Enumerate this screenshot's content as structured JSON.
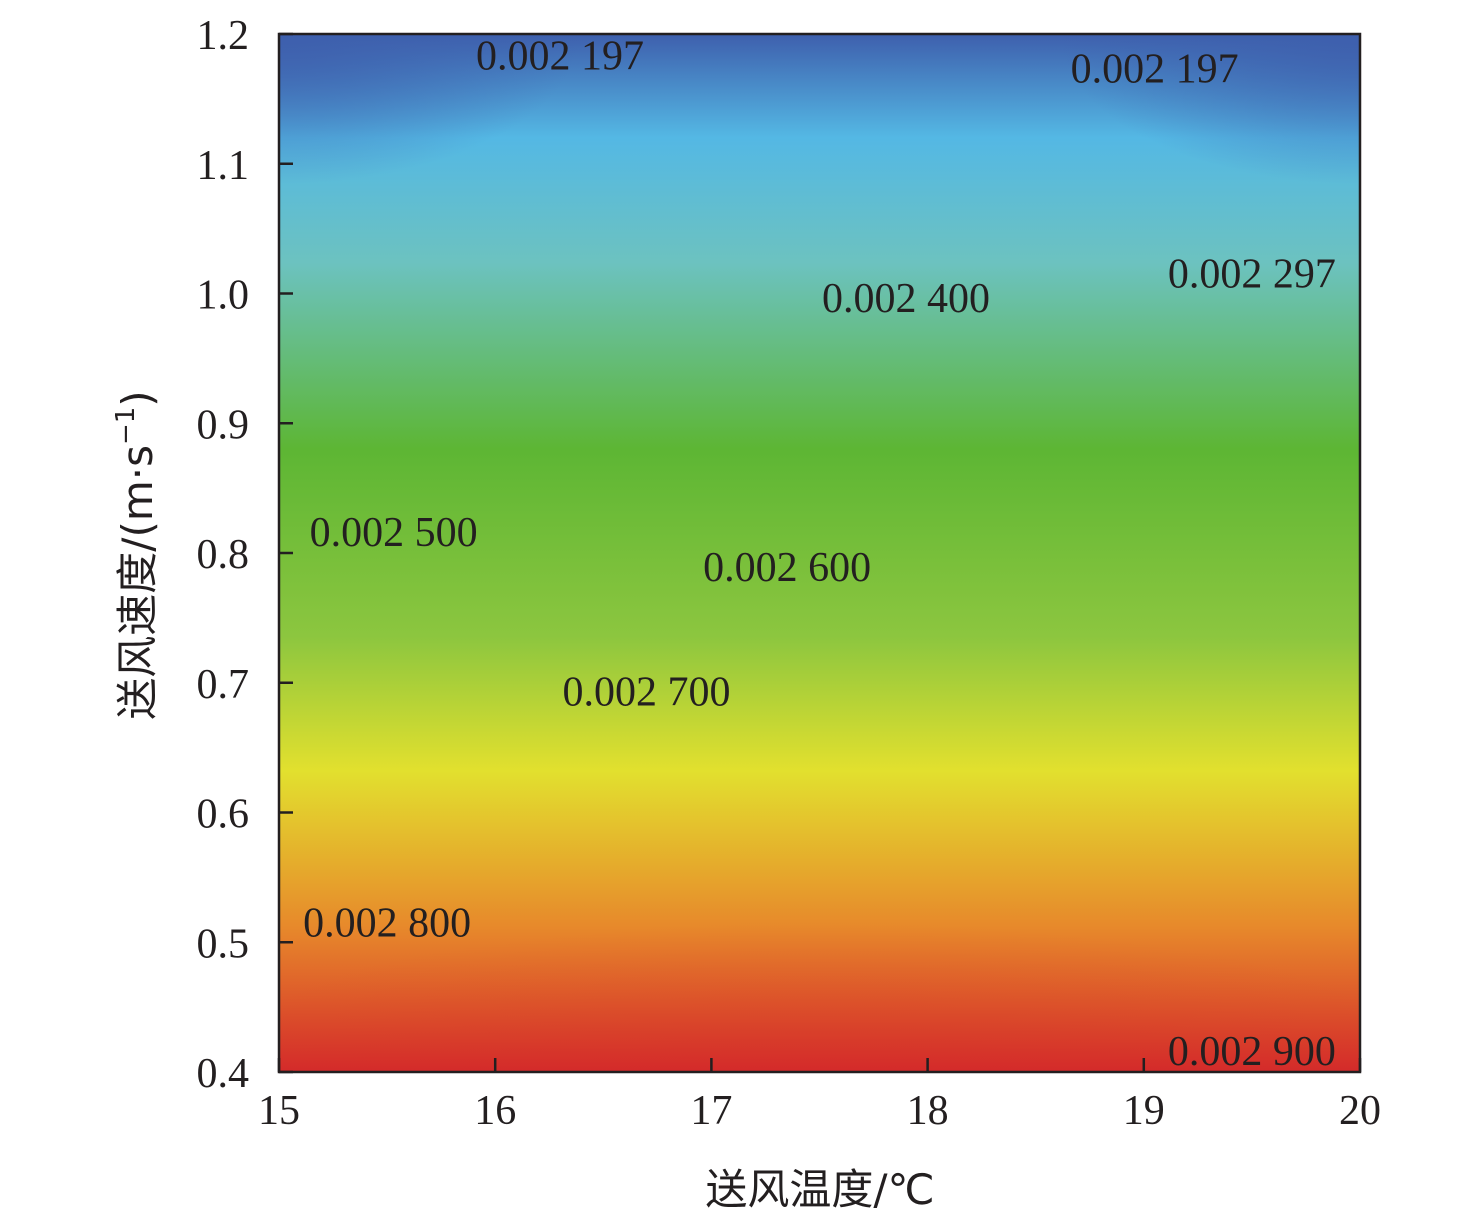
{
  "chart_data": {
    "type": "heatmap",
    "subtype": "contour",
    "title": "",
    "xlabel": "送风温度/℃",
    "ylabel_main": "送风速度/(m·s",
    "ylabel_sup": "−1",
    "ylabel_close": ")",
    "xlim": [
      15,
      20
    ],
    "ylim": [
      0.4,
      1.2
    ],
    "xticks": [
      {
        "value": 15,
        "label": "15"
      },
      {
        "value": 16,
        "label": "16"
      },
      {
        "value": 17,
        "label": "17"
      },
      {
        "value": 18,
        "label": "18"
      },
      {
        "value": 19,
        "label": "19"
      },
      {
        "value": 20,
        "label": "20"
      }
    ],
    "yticks": [
      {
        "value": 0.4,
        "label": "0.4"
      },
      {
        "value": 0.5,
        "label": "0.5"
      },
      {
        "value": 0.6,
        "label": "0.6"
      },
      {
        "value": 0.7,
        "label": "0.7"
      },
      {
        "value": 0.8,
        "label": "0.8"
      },
      {
        "value": 0.9,
        "label": "0.9"
      },
      {
        "value": 1.0,
        "label": "1.0"
      },
      {
        "value": 1.1,
        "label": "1.1"
      },
      {
        "value": 1.2,
        "label": "1.2"
      }
    ],
    "colormap": [
      "#d42a2a",
      "#e7892b",
      "#e2e02e",
      "#8cc63f",
      "#5db634",
      "#6cc2c0",
      "#54b8e4",
      "#3e5fad"
    ],
    "contours": [
      {
        "level": 0.0022,
        "edge_y": 1.093,
        "peak_y": 1.2,
        "peak_x": 17.5
      },
      {
        "level": 0.0023,
        "edge_y": 0.995,
        "peak_y": 1.1,
        "peak_x": 17.5
      },
      {
        "level": 0.0024,
        "edge_y": 0.895,
        "peak_y": 1.0,
        "peak_x": 17.5
      },
      {
        "level": 0.0025,
        "edge_y": 0.798,
        "peak_y": 0.885,
        "peak_x": 17.5
      },
      {
        "level": 0.0026,
        "edge_y": 0.7,
        "peak_y": 0.778,
        "peak_x": 17.5
      },
      {
        "level": 0.0027,
        "edge_y": 0.605,
        "peak_y": 0.675,
        "peak_x": 17.5
      },
      {
        "level": 0.0028,
        "edge_y": 0.505,
        "peak_y": 0.57,
        "peak_x": 17.5
      },
      {
        "level": 0.0029,
        "edge_y": 0.414,
        "peak_y": 0.466,
        "peak_x": 17.5
      }
    ],
    "contour_labels": [
      {
        "text": "0.002 197",
        "x": 16.3,
        "y": 1.18
      },
      {
        "text": "0.002 197",
        "x": 19.05,
        "y": 1.17
      },
      {
        "text": "0.002 297",
        "x": 19.5,
        "y": 1.012
      },
      {
        "text": "0.002 400",
        "x": 17.9,
        "y": 0.993
      },
      {
        "text": "0.002 500",
        "x": 15.53,
        "y": 0.813
      },
      {
        "text": "0.002 600",
        "x": 17.35,
        "y": 0.786
      },
      {
        "text": "0.002 700",
        "x": 16.7,
        "y": 0.69
      },
      {
        "text": "0.002 800",
        "x": 15.5,
        "y": 0.512
      },
      {
        "text": "0.002 900",
        "x": 19.5,
        "y": 0.413
      }
    ]
  }
}
